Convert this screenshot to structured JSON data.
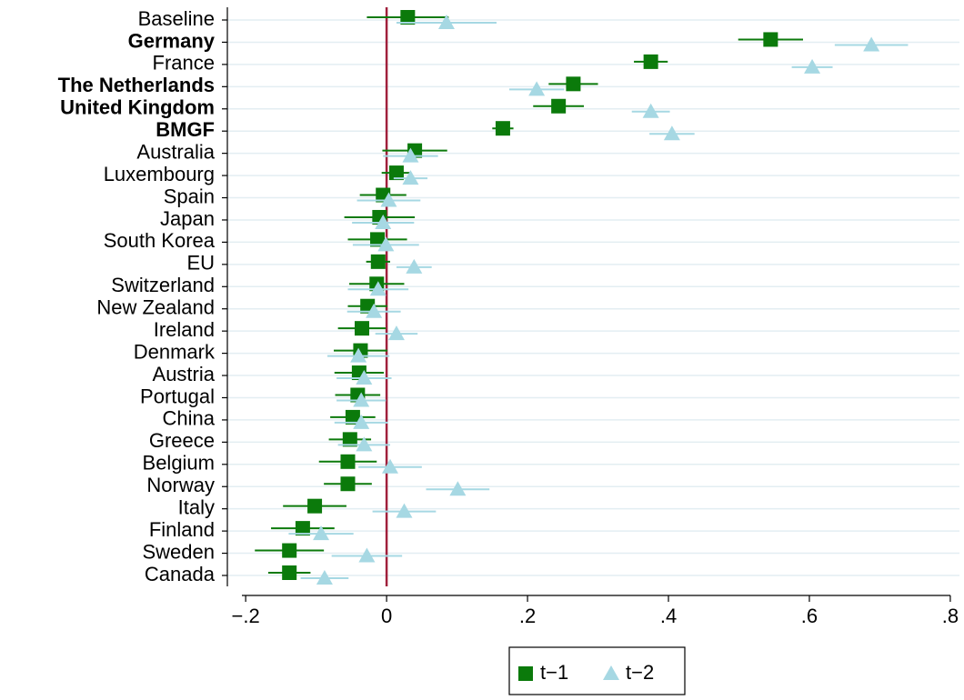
{
  "chart_data": {
    "type": "coefplot",
    "categories": [
      "Baseline",
      "Germany",
      "France",
      "The Netherlands",
      "United Kingdom",
      "BMGF",
      "Australia",
      "Luxembourg",
      "Spain",
      "Japan",
      "South Korea",
      "EU",
      "Switzerland",
      "New Zealand",
      "Ireland",
      "Denmark",
      "Austria",
      "Portugal",
      "China",
      "Greece",
      "Belgium",
      "Norway",
      "Italy",
      "Finland",
      "Sweden",
      "Canada"
    ],
    "bold_categories": [
      1,
      3,
      4,
      5
    ],
    "series": [
      {
        "name": "t−1",
        "color": "#0b7a0b",
        "marker": "square",
        "values": [
          0.03,
          0.545,
          0.375,
          0.265,
          0.244,
          0.165,
          0.04,
          0.014,
          -0.005,
          -0.01,
          -0.013,
          -0.012,
          -0.014,
          -0.027,
          -0.035,
          -0.037,
          -0.039,
          -0.041,
          -0.048,
          -0.052,
          -0.055,
          -0.055,
          -0.102,
          -0.119,
          -0.138,
          -0.138
        ],
        "errors": [
          0.058,
          0.046,
          0.024,
          0.035,
          0.036,
          0.015,
          0.046,
          0.021,
          0.033,
          0.05,
          0.042,
          0.017,
          0.039,
          0.028,
          0.034,
          0.038,
          0.035,
          0.032,
          0.032,
          0.03,
          0.041,
          0.034,
          0.045,
          0.045,
          0.049,
          0.03
        ]
      },
      {
        "name": "t−2",
        "color": "#a6d8e3",
        "marker": "triangle",
        "values": [
          0.085,
          0.688,
          0.604,
          0.213,
          0.375,
          0.405,
          0.034,
          0.034,
          0.003,
          -0.005,
          -0.001,
          0.039,
          -0.012,
          -0.018,
          0.014,
          -0.04,
          -0.032,
          -0.036,
          -0.036,
          -0.032,
          0.005,
          0.101,
          0.025,
          -0.093,
          -0.028,
          -0.088
        ],
        "errors": [
          0.071,
          0.052,
          0.029,
          0.039,
          0.027,
          0.032,
          0.039,
          0.024,
          0.045,
          0.044,
          0.047,
          0.025,
          0.043,
          0.038,
          0.03,
          0.044,
          0.039,
          0.035,
          0.038,
          0.037,
          0.045,
          0.045,
          0.045,
          0.046,
          0.05,
          0.034
        ]
      }
    ],
    "xlim": [
      -0.226,
      0.813
    ],
    "xticks": [
      {
        "value": -0.2,
        "label": "−.2"
      },
      0,
      {
        "value": 0.2,
        "label": ".2"
      },
      {
        "value": 0.4,
        "label": ".4"
      },
      {
        "value": 0.6,
        "label": ".6"
      },
      {
        "value": 0.8,
        "label": ".8"
      }
    ],
    "reference_line": 0,
    "reference_color": "#a0203c",
    "grid": true,
    "legend": "bottom"
  }
}
